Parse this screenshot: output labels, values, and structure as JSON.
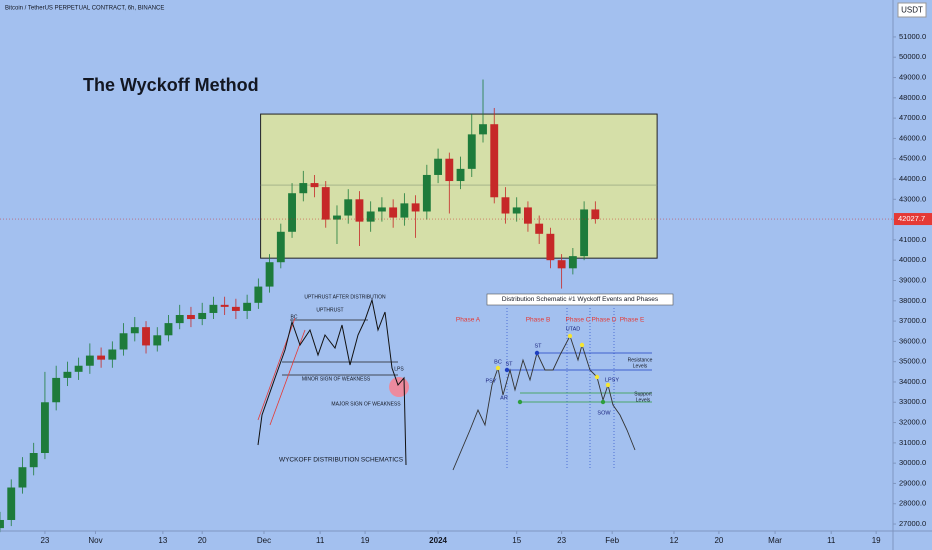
{
  "chart_data": {
    "type": "candlestick",
    "title": "The Wyckoff Method",
    "subtitle": "Bitcoin / TetherUS PERPETUAL CONTRACT, 6h, BINANCE",
    "currency": "USDT",
    "last_price": 42027.7,
    "up_color": "#1e7b3b",
    "down_color": "#c62828",
    "x": [
      -8,
      -6,
      -4,
      -2,
      0,
      2,
      4,
      6,
      8,
      10,
      12,
      14,
      16,
      18,
      20,
      22,
      24,
      26,
      28,
      30,
      32,
      34,
      36,
      38,
      40,
      42,
      44,
      46,
      48,
      50,
      52,
      54,
      56,
      58,
      60,
      62,
      64,
      66,
      68,
      70,
      72,
      74,
      76,
      78,
      80,
      82,
      84,
      86,
      88,
      90,
      92,
      94,
      96,
      98
    ],
    "open": [
      26800,
      27200,
      28800,
      29800,
      30500,
      33000,
      34200,
      34500,
      34800,
      35300,
      35100,
      35600,
      36400,
      36700,
      35800,
      36300,
      36900,
      37300,
      37100,
      37400,
      37800,
      37700,
      37500,
      37900,
      38700,
      39900,
      41400,
      43300,
      43800,
      43600,
      42000,
      42200,
      43000,
      41900,
      42400,
      42600,
      42100,
      42800,
      42400,
      44200,
      45000,
      43900,
      44500,
      46200,
      46700,
      43100,
      42300,
      42600,
      41800,
      41300,
      40000,
      39600,
      40200,
      42500
    ],
    "high": [
      27600,
      29200,
      30300,
      31000,
      34500,
      34800,
      35000,
      35200,
      35900,
      35700,
      36000,
      36900,
      37200,
      37000,
      36700,
      37300,
      37800,
      37700,
      37900,
      38200,
      38200,
      38100,
      38300,
      39100,
      40300,
      41800,
      43800,
      44400,
      44200,
      43900,
      42700,
      43500,
      43400,
      42900,
      43100,
      43000,
      43300,
      43200,
      44700,
      45500,
      45300,
      45100,
      47200,
      48900,
      47500,
      43600,
      43100,
      42900,
      42200,
      41600,
      40300,
      40600,
      42900,
      42900
    ],
    "low": [
      26600,
      26900,
      28500,
      29400,
      30200,
      32600,
      33800,
      34100,
      34400,
      34700,
      34700,
      35300,
      36000,
      35400,
      35500,
      36000,
      36600,
      36700,
      36800,
      37100,
      37300,
      37100,
      37100,
      37600,
      38400,
      39600,
      41100,
      42900,
      43100,
      41600,
      40800,
      41800,
      40700,
      41400,
      41900,
      41600,
      41700,
      41100,
      42000,
      43800,
      42300,
      43500,
      44100,
      45800,
      42800,
      41800,
      41900,
      41400,
      40800,
      39600,
      38600,
      39300,
      40000,
      41800
    ],
    "close": [
      27200,
      28800,
      29800,
      30500,
      33000,
      34200,
      34500,
      34800,
      35300,
      35100,
      35600,
      36400,
      36700,
      35800,
      36300,
      36900,
      37300,
      37100,
      37400,
      37800,
      37700,
      37500,
      37900,
      38700,
      39900,
      41400,
      43300,
      43800,
      43600,
      42000,
      42200,
      43000,
      41900,
      42400,
      42600,
      42100,
      42800,
      42400,
      44200,
      45000,
      43900,
      44500,
      46200,
      46700,
      43100,
      42300,
      42600,
      41800,
      41300,
      40000,
      39600,
      40200,
      42500,
      42027.7
    ],
    "xlim": [
      -8,
      151
    ],
    "xticks": [
      {
        "value": 0,
        "label": "23"
      },
      {
        "value": 9,
        "label": "Nov"
      },
      {
        "value": 21,
        "label": "13"
      },
      {
        "value": 28,
        "label": "20"
      },
      {
        "value": 39,
        "label": "Dec"
      },
      {
        "value": 49,
        "label": "11"
      },
      {
        "value": 57,
        "label": "19"
      },
      {
        "value": 70,
        "label": "2024"
      },
      {
        "value": 84,
        "label": "15"
      },
      {
        "value": 92,
        "label": "23"
      },
      {
        "value": 101,
        "label": "Feb"
      },
      {
        "value": 112,
        "label": "12"
      },
      {
        "value": 120,
        "label": "20"
      },
      {
        "value": 130,
        "label": "Mar"
      },
      {
        "value": 140,
        "label": "11"
      },
      {
        "value": 148,
        "label": "19"
      }
    ],
    "ylim": [
      26460,
      52820
    ],
    "yticks": [
      {
        "value": 27000,
        "label": "27000.0"
      },
      {
        "value": 28000,
        "label": "28000.0"
      },
      {
        "value": 29000,
        "label": "29000.0"
      },
      {
        "value": 30000,
        "label": "30000.0"
      },
      {
        "value": 31000,
        "label": "31000.0"
      },
      {
        "value": 32000,
        "label": "32000.0"
      },
      {
        "value": 33000,
        "label": "33000.0"
      },
      {
        "value": 34000,
        "label": "34000.0"
      },
      {
        "value": 35000,
        "label": "35000.0"
      },
      {
        "value": 36000,
        "label": "36000.0"
      },
      {
        "value": 37000,
        "label": "37000.0"
      },
      {
        "value": 38000,
        "label": "38000.0"
      },
      {
        "value": 39000,
        "label": "39000.0"
      },
      {
        "value": 40000,
        "label": "40000.0"
      },
      {
        "value": 41000,
        "label": "41000.0"
      },
      {
        "value": 42000,
        "label": "42000.0"
      },
      {
        "value": 43000,
        "label": "43000.0"
      },
      {
        "value": 44000,
        "label": "44000.0"
      },
      {
        "value": 45000,
        "label": "45000.0"
      },
      {
        "value": 46000,
        "label": "46000.0"
      },
      {
        "value": 47000,
        "label": "47000.0"
      },
      {
        "value": 48000,
        "label": "48000.0"
      },
      {
        "value": 49000,
        "label": "49000.0"
      },
      {
        "value": 50000,
        "label": "50000.0"
      },
      {
        "value": 51000,
        "label": "51000.0"
      }
    ],
    "box": {
      "x": [
        38.4,
        109
      ],
      "y": [
        40100,
        47200
      ],
      "mid": 43700,
      "color": "#d5dfa8"
    }
  },
  "schematic_left": {
    "upthrust_after": "UPTHRUST AFTER DISTRIBUTION",
    "upthrust": "UPTHRUST",
    "bc": "BC",
    "minor": "MINOR SIGN OF WEAKNESS",
    "major": "MAJOR SIGN OF WEAKNESS",
    "lps": "LPS",
    "caption": "WYCKOFF DISTRIBUTION SCHEMATICS"
  },
  "schematic_right": {
    "title": "Distribution Schematic #1 Wyckoff Events and Phases",
    "phases": [
      "Phase A",
      "Phase B",
      "Phase C",
      "Phase D",
      "Phase E"
    ],
    "events": [
      "PSY",
      "BC",
      "ST",
      "AR",
      "ST",
      "UTAD",
      "LPSY",
      "SOW"
    ],
    "resistance": [
      "Resistance",
      "Levels"
    ],
    "support": [
      "Support",
      "Levels"
    ]
  }
}
